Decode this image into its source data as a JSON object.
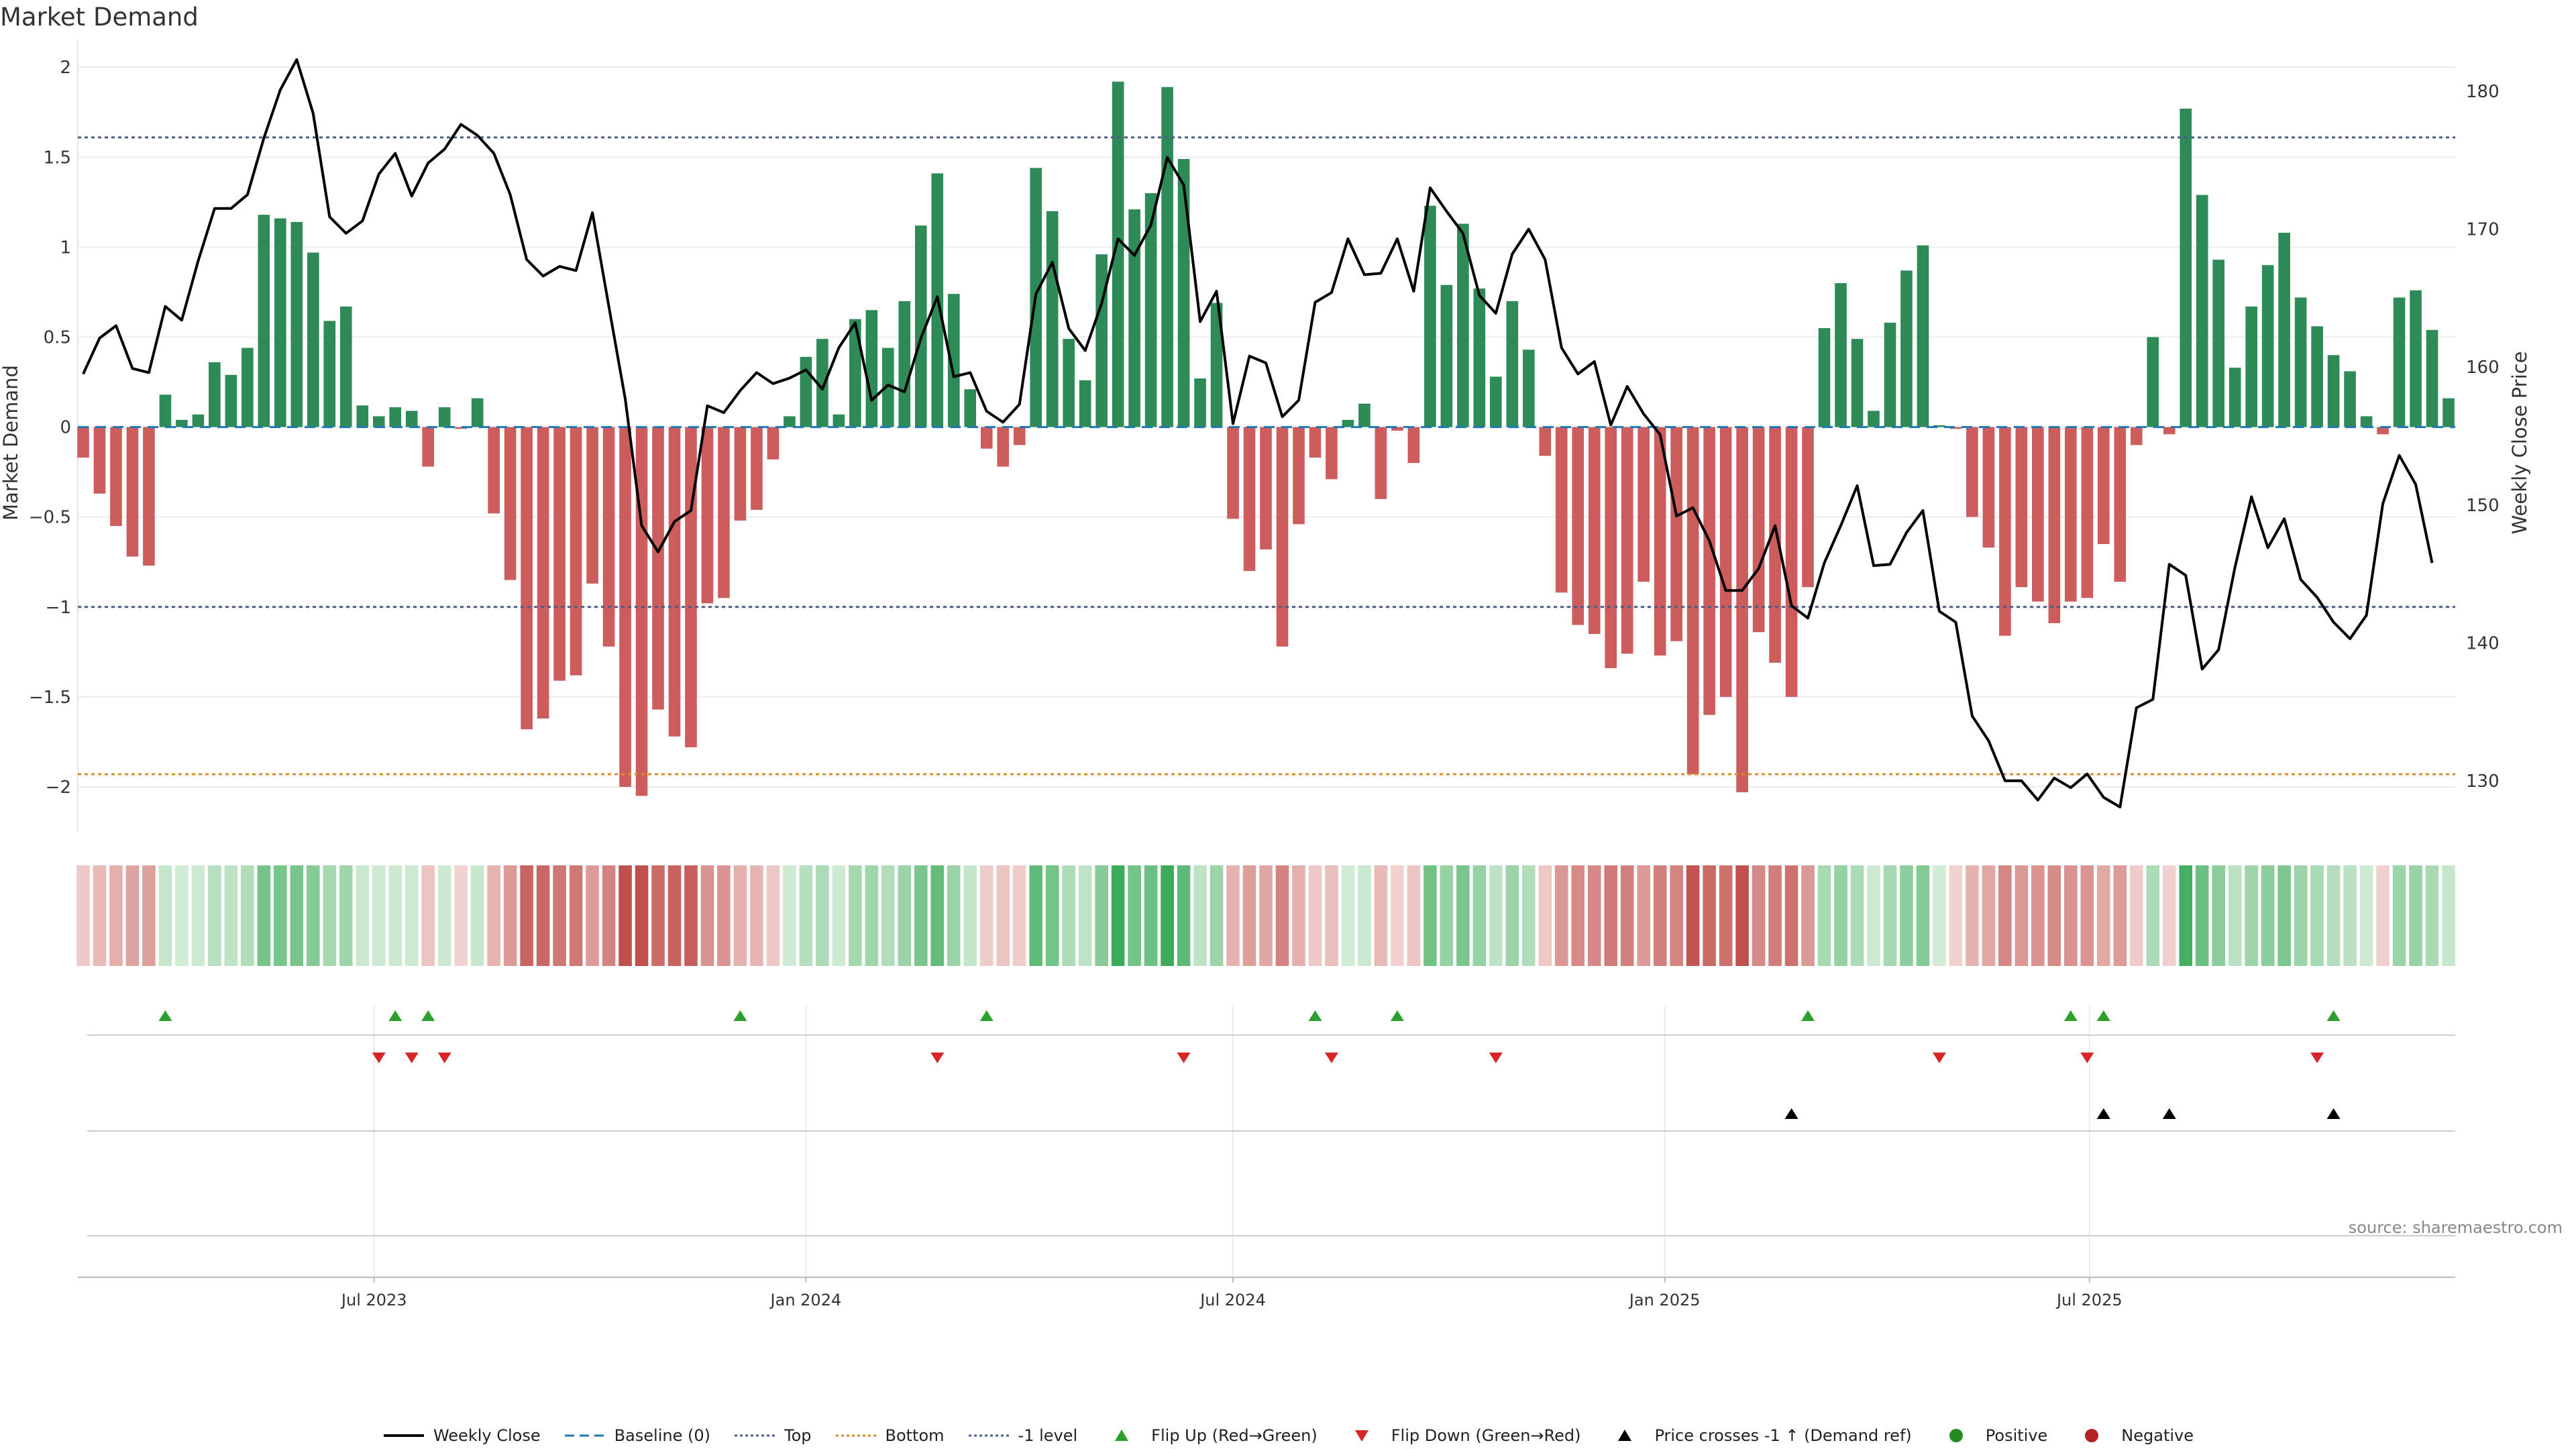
{
  "title": "Market Demand",
  "source": "source: sharemaestro.com",
  "colors": {
    "positive": "#2e8b57",
    "negative": "#cd5c5c",
    "line": "#000000",
    "baseline": "#1f77b4",
    "top": "#4b5b8a",
    "bottom": "#d98c2c",
    "minus1": "#4b5b8a",
    "flip_up": "#2ca02c",
    "flip_down": "#d62728",
    "cross": "#000000"
  },
  "legend": [
    {
      "label": "Weekly Close",
      "type": "line",
      "color": "#000000"
    },
    {
      "label": "Baseline (0)",
      "type": "dash",
      "color": "#1f77b4"
    },
    {
      "label": "Top",
      "type": "dot",
      "color": "#4b5b8a"
    },
    {
      "label": "Bottom",
      "type": "dot",
      "color": "#d98c2c"
    },
    {
      "label": "-1 level",
      "type": "dot",
      "color": "#4b5b8a"
    },
    {
      "label": "Flip Up (Red→Green)",
      "type": "tri-up",
      "color": "#2ca02c"
    },
    {
      "label": "Flip Down (Green→Red)",
      "type": "tri-down",
      "color": "#d62728"
    },
    {
      "label": "Price crosses -1 ↑ (Demand ref)",
      "type": "tri-up",
      "color": "#000000"
    },
    {
      "label": "Positive",
      "type": "circle",
      "color": "#228b22"
    },
    {
      "label": "Negative",
      "type": "circle",
      "color": "#b22222"
    }
  ],
  "chart_data": {
    "type": "bar",
    "ylabel": "Market Demand",
    "ylabel_right": "Weekly Close Price",
    "ylim": [
      -2.25,
      2.15
    ],
    "y2lim": [
      126.3,
      183.7
    ],
    "yticks": [
      2,
      1.5,
      1,
      0.5,
      0,
      -0.5,
      -1,
      -1.5,
      -2
    ],
    "yticks_labels": [
      "2",
      "1.5",
      "1",
      "0.5",
      "0",
      "−0.5",
      "−1",
      "−1.5",
      "−2"
    ],
    "y2ticks": [
      180,
      170,
      160,
      150,
      140,
      130
    ],
    "top_level": 1.61,
    "bottom_level": -1.93,
    "minus1_level": -1.0,
    "x_start": "2023-02-27",
    "x_ticks": [
      {
        "date": "2023-07-01",
        "label": "Jul 2023"
      },
      {
        "date": "2024-01-01",
        "label": "Jan 2024"
      },
      {
        "date": "2024-07-01",
        "label": "Jul 2024"
      },
      {
        "date": "2025-01-01",
        "label": "Jan 2025"
      },
      {
        "date": "2025-07-01",
        "label": "Jul 2025"
      }
    ],
    "demand": [
      -0.17,
      -0.37,
      -0.55,
      -0.72,
      -0.77,
      0.18,
      0.04,
      0.07,
      0.36,
      0.29,
      0.44,
      1.18,
      1.16,
      1.14,
      0.97,
      0.59,
      0.67,
      0.12,
      0.06,
      0.11,
      0.09,
      -0.22,
      0.11,
      -0.01,
      0.16,
      -0.48,
      -0.85,
      -1.68,
      -1.62,
      -1.41,
      -1.38,
      -0.87,
      -1.22,
      -2.0,
      -2.05,
      -1.57,
      -1.72,
      -1.78,
      -0.98,
      -0.95,
      -0.52,
      -0.46,
      -0.18,
      0.06,
      0.39,
      0.49,
      0.07,
      0.6,
      0.65,
      0.44,
      0.7,
      1.12,
      1.41,
      0.74,
      0.21,
      -0.12,
      -0.22,
      -0.1,
      1.44,
      1.2,
      0.49,
      0.26,
      0.96,
      1.92,
      1.21,
      1.3,
      1.89,
      1.49,
      0.27,
      0.69,
      -0.51,
      -0.8,
      -0.68,
      -1.22,
      -0.54,
      -0.17,
      -0.29,
      0.04,
      0.13,
      -0.4,
      -0.02,
      -0.2,
      1.23,
      0.79,
      1.13,
      0.77,
      0.28,
      0.7,
      0.43,
      -0.16,
      -0.92,
      -1.1,
      -1.15,
      -1.34,
      -1.26,
      -0.86,
      -1.27,
      -1.19,
      -1.93,
      -1.6,
      -1.5,
      -2.03,
      -1.14,
      -1.31,
      -1.5,
      -0.89,
      0.55,
      0.8,
      0.49,
      0.09,
      0.58,
      0.87,
      1.01,
      0.01,
      -0.01,
      -0.5,
      -0.67,
      -1.16,
      -0.89,
      -0.97,
      -1.09,
      -0.97,
      -0.95,
      -0.65,
      -0.86,
      -0.1,
      0.5,
      -0.04,
      1.77,
      1.29,
      0.93,
      0.33,
      0.67,
      0.9,
      1.08,
      0.72,
      0.56,
      0.4,
      0.31,
      0.06,
      -0.04,
      0.72,
      0.76,
      0.54,
      0.16
    ],
    "weekly_close": [
      159.5,
      162.1,
      163.0,
      159.9,
      159.6,
      164.4,
      163.4,
      167.7,
      171.5,
      171.5,
      172.5,
      176.6,
      180.1,
      182.3,
      178.4,
      170.9,
      169.7,
      170.6,
      174.0,
      175.5,
      172.4,
      174.8,
      175.8,
      177.6,
      176.8,
      175.5,
      172.5,
      167.8,
      166.6,
      167.3,
      167.0,
      171.2,
      164.4,
      157.7,
      148.5,
      146.6,
      148.8,
      149.6,
      157.2,
      156.7,
      158.3,
      159.6,
      158.8,
      159.2,
      159.8,
      158.4,
      161.4,
      163.2,
      157.6,
      158.7,
      158.2,
      162.1,
      165.1,
      159.3,
      159.6,
      156.8,
      156.0,
      157.3,
      165.3,
      167.6,
      162.8,
      161.2,
      164.6,
      169.3,
      168.1,
      170.3,
      175.2,
      173.2,
      163.3,
      165.5,
      155.9,
      160.8,
      160.3,
      156.4,
      157.6,
      164.7,
      165.4,
      169.3,
      166.7,
      166.8,
      169.3,
      165.5,
      173.0,
      171.3,
      169.7,
      165.2,
      163.9,
      168.2,
      170.0,
      167.8,
      161.4,
      159.5,
      160.4,
      155.8,
      158.6,
      156.6,
      155.1,
      149.2,
      149.8,
      147.4,
      143.8,
      143.8,
      145.4,
      148.5,
      142.7,
      141.8,
      145.8,
      148.5,
      151.4,
      145.6,
      145.7,
      148.0,
      149.6,
      142.3,
      141.5,
      134.7,
      132.9,
      130.0,
      130.0,
      128.6,
      130.2,
      129.5,
      130.5,
      128.8,
      128.1,
      135.3,
      135.9,
      145.7,
      144.9,
      138.1,
      139.5,
      145.5,
      150.6,
      146.9,
      149.0,
      144.6,
      143.3,
      141.5,
      140.3,
      142.0,
      150.1,
      153.6,
      151.5,
      145.8
    ],
    "flip_up_dates": [
      "2023-04-03",
      "2023-07-10",
      "2023-07-24",
      "2023-12-04",
      "2024-03-18",
      "2024-08-05",
      "2024-09-09",
      "2025-03-03",
      "2025-06-23",
      "2025-07-07",
      "2025-10-13"
    ],
    "flip_down_dates": [
      "2023-07-03",
      "2023-07-17",
      "2023-07-31",
      "2024-02-26",
      "2024-06-10",
      "2024-08-12",
      "2024-10-21",
      "2025-04-28",
      "2025-06-30",
      "2025-10-06"
    ],
    "cross_dates": [
      "2025-02-24",
      "2025-07-07",
      "2025-08-04",
      "2025-10-13"
    ]
  }
}
